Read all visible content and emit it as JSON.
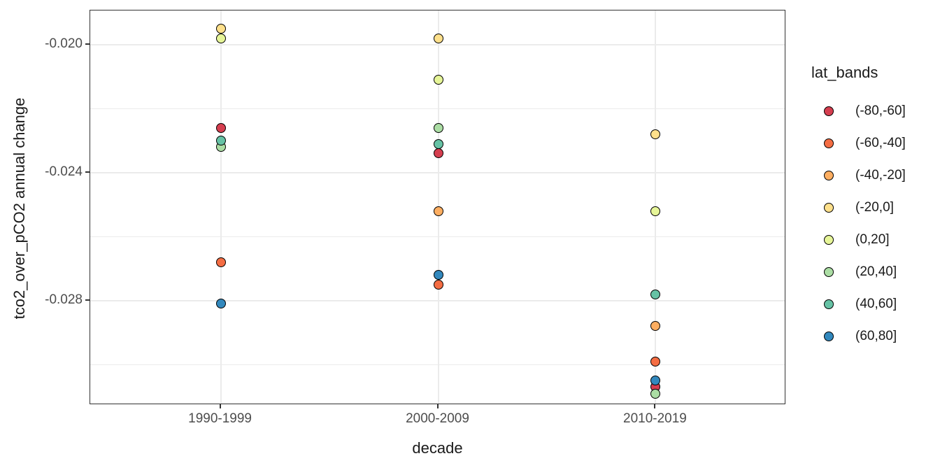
{
  "chart_data": {
    "type": "scatter",
    "title": "",
    "xlabel": "decade",
    "ylabel": "tco2_over_pCO2 annual change",
    "categories": [
      "1990-1999",
      "2000-2009",
      "2010-2019"
    ],
    "y_ticks": [
      {
        "value": -0.02,
        "label": "-0.020"
      },
      {
        "value": -0.024,
        "label": "-0.024"
      },
      {
        "value": -0.028,
        "label": "-0.028"
      }
    ],
    "y_minor_ticks": [
      -0.022,
      -0.026,
      -0.03
    ],
    "ylim": [
      -0.03126,
      -0.01893
    ],
    "grid": true,
    "legend_position": "right",
    "legend_title": "lat_bands",
    "series": [
      {
        "name": "(-80,-60]",
        "color": "#d53e4f",
        "values": [
          -0.0226,
          -0.0234,
          -0.0307
        ]
      },
      {
        "name": "(-60,-40]",
        "color": "#f46d43",
        "values": [
          -0.0268,
          -0.0275,
          -0.0299
        ]
      },
      {
        "name": "(-40,-20]",
        "color": "#fdae61",
        "values": [
          null,
          -0.0252,
          -0.0288
        ]
      },
      {
        "name": "(-20,0]",
        "color": "#fee08b",
        "values": [
          -0.0195,
          -0.0198,
          -0.0228
        ]
      },
      {
        "name": "(0,20]",
        "color": "#e6f598",
        "values": [
          -0.0198,
          -0.0211,
          -0.0252
        ]
      },
      {
        "name": "(20,40]",
        "color": "#abdda4",
        "values": [
          -0.0232,
          -0.0226,
          -0.0309
        ]
      },
      {
        "name": "(40,60]",
        "color": "#66c2a5",
        "values": [
          -0.023,
          -0.0231,
          -0.0278
        ]
      },
      {
        "name": "(60,80]",
        "color": "#3288bd",
        "values": [
          -0.0281,
          -0.0272,
          -0.0305
        ]
      }
    ]
  },
  "colors": {
    "background": "#ffffff",
    "grid": "#ebebeb",
    "panel_border": "#333333",
    "tick_label": "#4d4d4d",
    "axis_title": "#1a1a1a",
    "point_stroke": "#000000"
  }
}
